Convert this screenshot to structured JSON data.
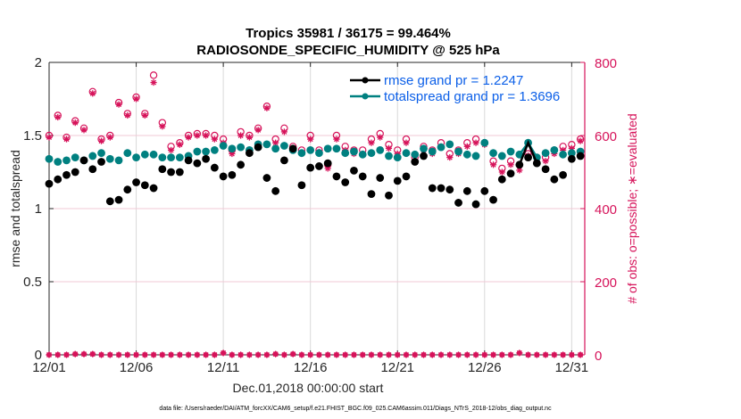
{
  "chart_data": {
    "type": "scatter",
    "title": "Tropics 35981 / 36175 = 99.464%",
    "subtitle": "RADIOSONDE_SPECIFIC_HUMIDITY @ 525 hPa",
    "xlabel": "Dec.01,2018 00:00:00 start",
    "ylabel": "rmse and totalspread",
    "ylabel_right": "# of obs: o=possible; ∗=evaluated",
    "footer": "data file: /Users/raeder/DAI/ATM_forcXX/CAM6_setup/f.e21.FHIST_BGC.f09_025.CAM6assim.011/Diags_NTrS_2018-12/obs_diag_output.nc",
    "x_tick_labels": [
      "12/01",
      "12/06",
      "12/11",
      "12/16",
      "12/21",
      "12/26",
      "12/31"
    ],
    "x_tick_days": [
      0,
      5,
      10,
      15,
      20,
      25,
      30
    ],
    "x_range_days": [
      0,
      30.75
    ],
    "y_tick_labels": [
      "0",
      "0.5",
      "1",
      "1.5",
      "2"
    ],
    "y_ticks": [
      0,
      0.5,
      1,
      1.5,
      2
    ],
    "ylim": [
      0,
      2
    ],
    "y_right_tick_labels": [
      "0",
      "200",
      "400",
      "600",
      "800"
    ],
    "y_right_ticks": [
      0,
      200,
      400,
      600,
      800
    ],
    "ylim_right": [
      0,
      800
    ],
    "grid": true,
    "legend_position": "top-right",
    "colors": {
      "rmse": "#000000",
      "totalspread": "#008080",
      "obs": "#d6135a",
      "legend_text": "#0b5fe8",
      "grid": "#d9d9d9",
      "right_grid": "#f2c8d6"
    },
    "x_step_days": 0.5,
    "series": [
      {
        "name": "rmse grand pr = 1.2247",
        "key": "rmse",
        "values": [
          1.17,
          1.2,
          1.23,
          1.25,
          1.33,
          1.27,
          1.32,
          1.05,
          1.06,
          1.13,
          1.18,
          1.16,
          1.14,
          1.27,
          1.25,
          1.25,
          1.33,
          1.31,
          1.34,
          1.28,
          1.22,
          1.23,
          1.3,
          1.38,
          1.42,
          1.21,
          1.12,
          1.33,
          1.41,
          1.16,
          1.28,
          1.29,
          1.31,
          1.22,
          1.18,
          1.26,
          1.22,
          1.1,
          1.21,
          1.09,
          1.19,
          1.22,
          1.32,
          1.36,
          1.14,
          1.14,
          1.13,
          1.04,
          1.12,
          1.03,
          1.12,
          1.06,
          1.2,
          1.24,
          1.3,
          1.35,
          1.31,
          1.27,
          1.2,
          1.23,
          1.34,
          1.36
        ],
        "highlight_segment_index": [
          54,
          55,
          56
        ]
      },
      {
        "name": "totalspread grand pr = 1.3696",
        "key": "totalspread",
        "values": [
          1.34,
          1.32,
          1.33,
          1.35,
          1.33,
          1.36,
          1.38,
          1.34,
          1.33,
          1.38,
          1.35,
          1.37,
          1.37,
          1.35,
          1.35,
          1.35,
          1.36,
          1.39,
          1.39,
          1.4,
          1.43,
          1.41,
          1.42,
          1.4,
          1.44,
          1.44,
          1.41,
          1.43,
          1.4,
          1.38,
          1.4,
          1.38,
          1.41,
          1.41,
          1.38,
          1.39,
          1.37,
          1.38,
          1.4,
          1.36,
          1.35,
          1.38,
          1.37,
          1.41,
          1.39,
          1.42,
          1.44,
          1.39,
          1.37,
          1.36,
          1.45,
          1.38,
          1.36,
          1.39,
          1.37,
          1.45,
          1.35,
          1.38,
          1.4,
          1.37,
          1.38,
          1.39
        ]
      },
      {
        "name": "obs possible",
        "key": "obs_possible",
        "axis": "right",
        "marker": "circle-open",
        "values": [
          600,
          655,
          595,
          640,
          620,
          720,
          590,
          600,
          690,
          660,
          705,
          660,
          765,
          635,
          570,
          580,
          600,
          605,
          605,
          600,
          590,
          560,
          610,
          600,
          620,
          680,
          590,
          620,
          570,
          560,
          600,
          560,
          520,
          600,
          570,
          560,
          560,
          590,
          605,
          575,
          560,
          590,
          540,
          570,
          560,
          580,
          550,
          560,
          580,
          590,
          580,
          530,
          510,
          530,
          520,
          550,
          540,
          540,
          560,
          570,
          575,
          590
        ]
      },
      {
        "name": "obs evaluated",
        "key": "obs_evaluated",
        "axis": "right",
        "marker": "asterisk",
        "values": [
          595,
          650,
          590,
          635,
          615,
          715,
          585,
          595,
          685,
          655,
          700,
          655,
          745,
          625,
          560,
          575,
          595,
          600,
          600,
          590,
          580,
          550,
          600,
          595,
          615,
          675,
          580,
          610,
          560,
          550,
          590,
          555,
          510,
          590,
          560,
          550,
          550,
          580,
          595,
          565,
          550,
          580,
          530,
          560,
          550,
          570,
          540,
          550,
          570,
          580,
          575,
          520,
          500,
          520,
          505,
          545,
          530,
          530,
          550,
          560,
          565,
          585
        ]
      },
      {
        "name": "obs zero row",
        "key": "obs_bottom",
        "axis": "right",
        "marker": "asterisk",
        "values": [
          0,
          0,
          0,
          2,
          2,
          2,
          0,
          0,
          0,
          0,
          0,
          0,
          0,
          0,
          0,
          0,
          0,
          0,
          0,
          0,
          5,
          0,
          0,
          0,
          0,
          0,
          2,
          0,
          2,
          0,
          0,
          0,
          0,
          0,
          0,
          0,
          0,
          0,
          0,
          0,
          0,
          0,
          0,
          0,
          0,
          0,
          0,
          0,
          0,
          0,
          0,
          0,
          0,
          0,
          5,
          0,
          0,
          0,
          0,
          0,
          0,
          0
        ]
      }
    ],
    "legend": [
      {
        "key": "rmse",
        "label": "rmse grand pr = 1.2247"
      },
      {
        "key": "totalspread",
        "label": "totalspread grand pr = 1.3696"
      }
    ]
  }
}
